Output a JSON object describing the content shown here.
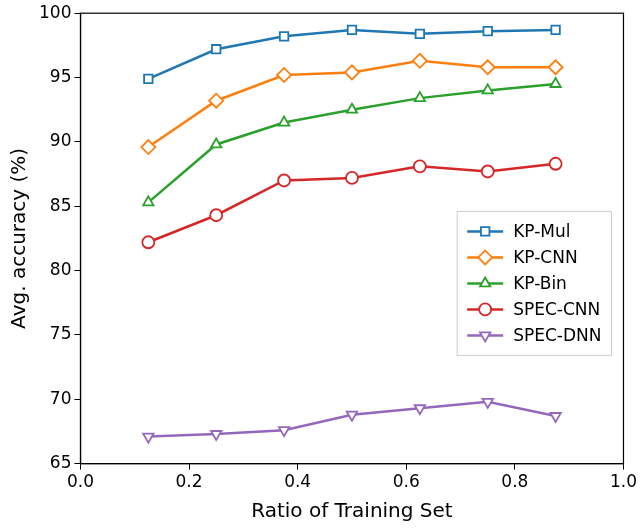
{
  "chart_data": {
    "type": "line",
    "x_label": "Ratio of Training Set",
    "y_label": "Avg. accuracy (%)",
    "x": [
      0.125,
      0.25,
      0.375,
      0.5,
      0.625,
      0.75,
      0.875
    ],
    "series": [
      {
        "name": "KP-Mul",
        "color": "#1f77b4",
        "marker": "square",
        "values": [
          94.9,
          97.2,
          98.2,
          98.7,
          98.4,
          98.6,
          98.7
        ]
      },
      {
        "name": "KP-CNN",
        "color": "#ff7f0e",
        "marker": "diamond",
        "values": [
          89.6,
          93.2,
          95.2,
          95.4,
          96.3,
          95.8,
          95.8
        ]
      },
      {
        "name": "KP-Bin",
        "color": "#2ca02c",
        "marker": "triangle",
        "values": [
          85.3,
          89.8,
          91.5,
          92.5,
          93.4,
          94.0,
          94.5
        ]
      },
      {
        "name": "SPEC-CNN",
        "color": "#d62728",
        "marker": "circle",
        "values": [
          82.2,
          84.3,
          87.0,
          87.2,
          88.1,
          87.7,
          88.3
        ]
      },
      {
        "name": "SPEC-DNN",
        "color": "#9467bd",
        "marker": "triangle_down",
        "values": [
          67.1,
          67.3,
          67.6,
          68.8,
          69.3,
          69.8,
          68.7
        ]
      }
    ],
    "xlim": [
      0,
      1
    ],
    "xticks": [
      {
        "value": 0,
        "label": "0.0"
      },
      0.2,
      0.4,
      0.6,
      0.8,
      {
        "value": 1,
        "label": "1.0"
      }
    ],
    "ylim": [
      65,
      100
    ],
    "yticks": [
      65,
      70,
      75,
      80,
      85,
      90,
      95,
      100
    ],
    "grid": false,
    "legend": "center right"
  }
}
